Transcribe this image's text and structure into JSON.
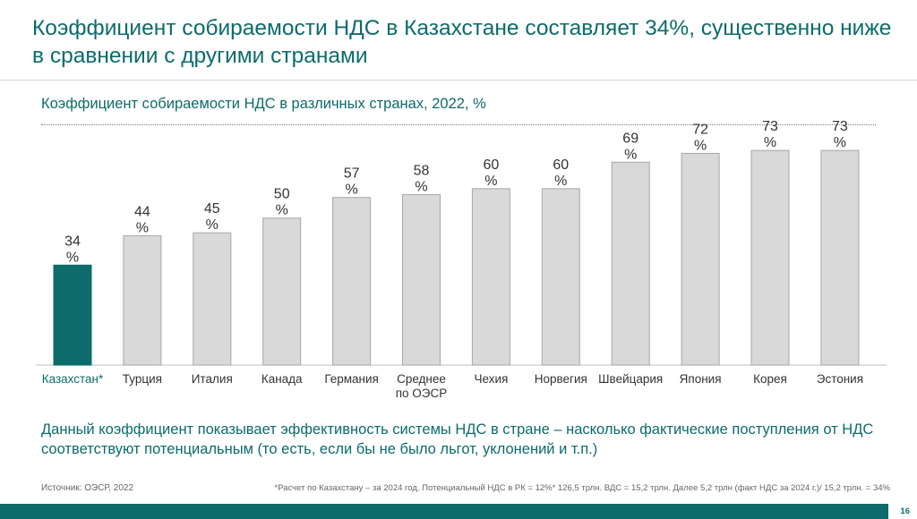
{
  "slide": {
    "title": "Коэффициент собираемости НДС в Казахстане составляет 34%, существенно ниже в сравнении с другими странами",
    "description": "Данный коэффициент показывает эффективность системы НДС в стране – насколько фактические поступления от НДС соответствуют потенциальным (то есть, если бы не было льгот, уклонений и т.п.)",
    "source": "Источник: ОЭСР, 2022",
    "footnote": "*Расчет по Казахстану – за 2024 год. Потенциальный НДС в РК = 12%* 126,5 трлн. ВДС = 15,2 трлн. Далее 5,2 трлн (факт НДС за 2024 г.)/ 15,2 трлн. = 34%",
    "page_number": "16"
  },
  "chart_data": {
    "type": "bar",
    "title": "Коэффициент собираемости НДС в различных странах, 2022, %",
    "categories": [
      [
        "Казахстан*"
      ],
      [
        "Турция"
      ],
      [
        "Италия"
      ],
      [
        "Канада"
      ],
      [
        "Германия"
      ],
      [
        "Среднее",
        "по ОЭСР"
      ],
      [
        "Чехия"
      ],
      [
        "Норвегия"
      ],
      [
        "Швейцария"
      ],
      [
        "Япония"
      ],
      [
        "Корея"
      ],
      [
        "Эстония"
      ]
    ],
    "values": [
      34,
      44,
      45,
      50,
      57,
      58,
      60,
      60,
      69,
      72,
      73,
      73
    ],
    "unit": "%",
    "highlight_index": 0,
    "ylim": [
      0,
      77
    ],
    "grid": false,
    "legend": false
  },
  "colors": {
    "accent": "#0d6b6b",
    "highlight_bar": "#0d6b6b",
    "bar": "#d9d9d9",
    "bar_stroke": "#a6a6a6"
  }
}
